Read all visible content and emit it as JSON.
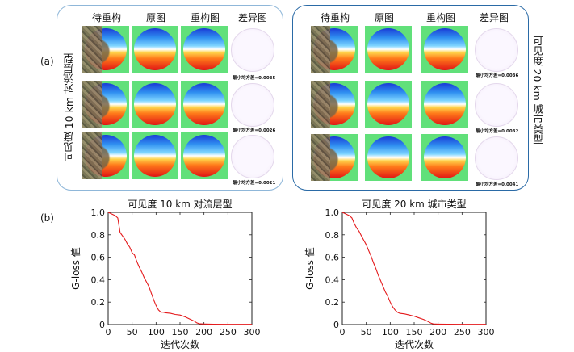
{
  "part_a_label": "(a)",
  "part_b_label": "(b)",
  "column_headers": [
    "待重构",
    "原图",
    "重构图",
    "差异图"
  ],
  "left_panel": {
    "side_label": "可见度 10 km 对流层型",
    "mse": [
      "最小均方差=0.0035",
      "最小均方差=0.0026",
      "最小均方差=0.0021"
    ]
  },
  "right_panel": {
    "side_label": "可见度 20 km 城市类型",
    "mse": [
      "最小均方差=0.0036",
      "最小均方差=0.0032",
      "最小均方差=0.0041"
    ]
  },
  "chart_data": [
    {
      "type": "line",
      "title": "可见度 10 km 对流层型",
      "xlabel": "迭代次数",
      "ylabel": "G-loss 值",
      "xlim": [
        0,
        300
      ],
      "ylim": [
        0,
        1.0
      ],
      "xticks": [
        "0",
        "50",
        "100",
        "150",
        "200",
        "250",
        "300"
      ],
      "yticks": [
        "0",
        "0.2",
        "0.4",
        "0.6",
        "0.8",
        "1.0"
      ],
      "color": "#e41a1c",
      "x": [
        0,
        5,
        10,
        15,
        20,
        25,
        30,
        35,
        40,
        45,
        50,
        55,
        60,
        65,
        70,
        75,
        80,
        85,
        90,
        95,
        100,
        105,
        110,
        115,
        120,
        130,
        140,
        150,
        160,
        170,
        180,
        185,
        190,
        200,
        220,
        250,
        280,
        300
      ],
      "y": [
        1.0,
        0.99,
        0.98,
        0.97,
        0.95,
        0.82,
        0.79,
        0.76,
        0.72,
        0.69,
        0.64,
        0.62,
        0.56,
        0.51,
        0.47,
        0.42,
        0.38,
        0.34,
        0.28,
        0.22,
        0.17,
        0.13,
        0.11,
        0.11,
        0.105,
        0.1,
        0.09,
        0.085,
        0.07,
        0.05,
        0.03,
        0.015,
        0.008,
        0.005,
        0.003,
        0.002,
        0.002,
        0.002
      ]
    },
    {
      "type": "line",
      "title": "可见度 20 km 城市类型",
      "xlabel": "迭代次数",
      "ylabel": "G-loss 值",
      "xlim": [
        0,
        300
      ],
      "ylim": [
        0,
        1.0
      ],
      "xticks": [
        "0",
        "50",
        "100",
        "150",
        "200",
        "250",
        "300"
      ],
      "yticks": [
        "0",
        "0.2",
        "0.4",
        "0.6",
        "0.8",
        "1.0"
      ],
      "color": "#e41a1c",
      "x": [
        0,
        5,
        10,
        15,
        20,
        25,
        30,
        35,
        40,
        45,
        50,
        55,
        60,
        65,
        70,
        75,
        80,
        85,
        90,
        95,
        100,
        105,
        110,
        115,
        120,
        130,
        140,
        150,
        160,
        170,
        180,
        185,
        190,
        200,
        220,
        250,
        280,
        300
      ],
      "y": [
        1.0,
        0.99,
        0.98,
        0.97,
        0.95,
        0.9,
        0.86,
        0.83,
        0.79,
        0.75,
        0.71,
        0.66,
        0.61,
        0.55,
        0.5,
        0.44,
        0.39,
        0.34,
        0.29,
        0.25,
        0.2,
        0.16,
        0.13,
        0.11,
        0.1,
        0.095,
        0.085,
        0.075,
        0.06,
        0.045,
        0.025,
        0.012,
        0.006,
        0.004,
        0.003,
        0.002,
        0.002,
        0.002
      ]
    }
  ]
}
